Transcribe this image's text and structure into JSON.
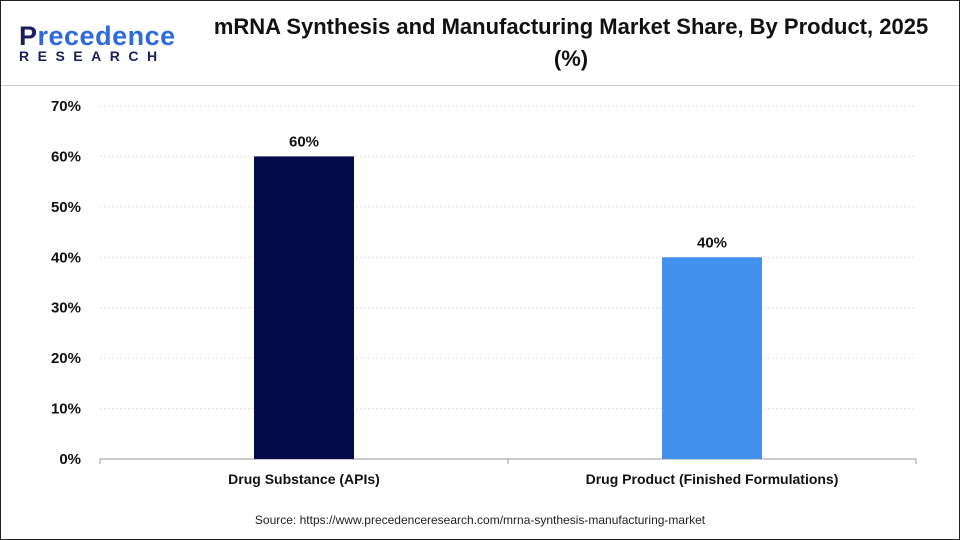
{
  "header": {
    "logo_text": "Precedence RESEARCH",
    "title": "mRNA Synthesis and Manufacturing Market Share, By Product, 2025 (%)"
  },
  "chart_data": {
    "type": "bar",
    "title": "mRNA Synthesis and Manufacturing Market Share, By Product, 2025 (%)",
    "categories": [
      "Drug Substance (APIs)",
      "Drug Product (Finished Formulations)"
    ],
    "values": [
      60,
      40
    ],
    "data_labels": [
      "60%",
      "40%"
    ],
    "colors": [
      "#050a4d",
      "#4391ee"
    ],
    "ylim": [
      0,
      70
    ],
    "yticks": [
      "0%",
      "10%",
      "20%",
      "30%",
      "40%",
      "50%",
      "60%",
      "70%"
    ],
    "grid": true,
    "xlabel": "",
    "ylabel": ""
  },
  "source": "Source: https://www.precedenceresearch.com/mrna-synthesis-manufacturing-market"
}
